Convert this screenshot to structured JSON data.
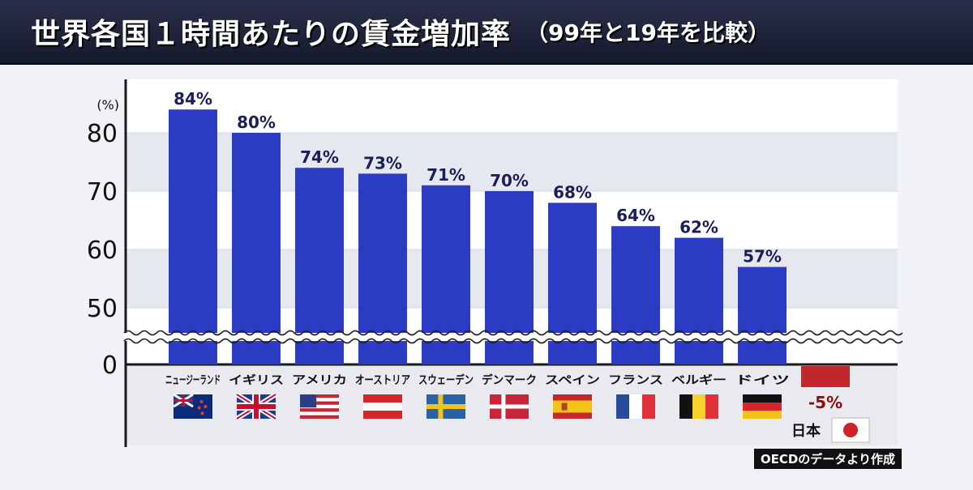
{
  "header": {
    "title": "世界各国１時間あたりの賃金増加率",
    "subtitle": "（99年と19年を比較）"
  },
  "footer": {
    "credit": "OECDのデータより作成"
  },
  "colors": {
    "bar": "#2b3bc4",
    "negative_bar": "#c0282c",
    "axis": "#1a1a1a"
  },
  "chart_data": {
    "type": "bar",
    "ylabel": "(%)",
    "y_ticks": [
      0,
      50,
      60,
      70,
      80
    ],
    "ylim": [
      0,
      85
    ],
    "axis_break": "between 0 and 50",
    "categories": [
      "ニュージーランド",
      "イギリス",
      "アメリカ",
      "オーストリア",
      "スウェーデン",
      "デンマーク",
      "スペイン",
      "フランス",
      "ベルギー",
      "ドイツ",
      "日本"
    ],
    "values": [
      84,
      80,
      74,
      73,
      71,
      70,
      68,
      64,
      62,
      57,
      -5
    ],
    "data_labels": [
      "84%",
      "80%",
      "74%",
      "73%",
      "71%",
      "70%",
      "68%",
      "64%",
      "62%",
      "57%",
      "-5%"
    ],
    "flags": [
      "new-zealand-flag",
      "uk-flag",
      "usa-flag",
      "austria-flag",
      "sweden-flag",
      "denmark-flag",
      "spain-flag",
      "france-flag",
      "belgium-flag",
      "germany-flag",
      "japan-flag"
    ]
  }
}
